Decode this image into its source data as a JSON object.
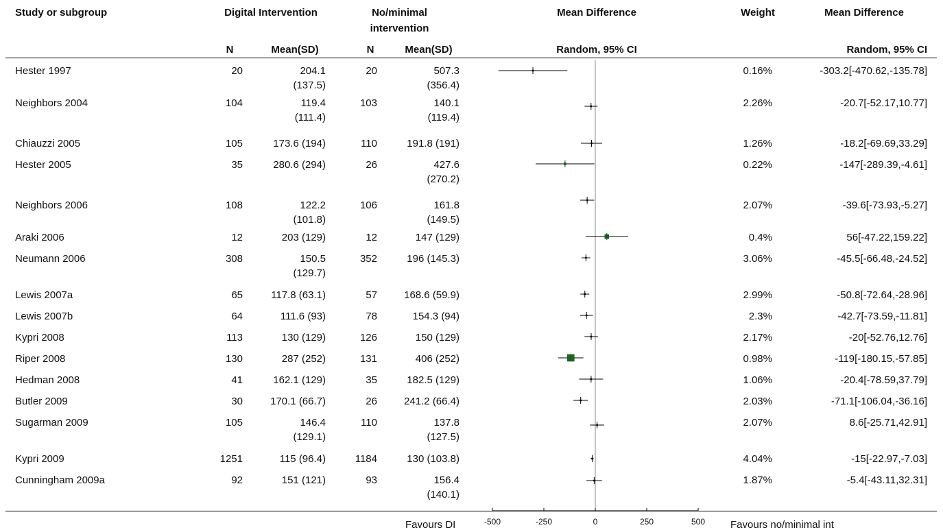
{
  "header": {
    "study": "Study or subgroup",
    "group1": "Digital Intervention",
    "group2_line1": "No/minimal",
    "group2_line2": "intervention",
    "md": "Mean Difference",
    "weight": "Weight",
    "md2": "Mean Difference",
    "n": "N",
    "mean_sd": "Mean(SD)",
    "random_ci": "Random, 95% CI"
  },
  "rows": [
    {
      "study": "Hester 1997",
      "n1": "20",
      "m1a": "204.1",
      "m1b": "(137.5)",
      "n2": "20",
      "m2a": "507.3",
      "m2b": "(356.4)",
      "weight": "0.16%",
      "ci": "-303.2[-470.62,-135.78]"
    },
    {
      "study": "Neighbors 2004",
      "n1": "104",
      "m1a": "119.4",
      "m1b": "(111.4)",
      "n2": "103",
      "m2a": "140.1",
      "m2b": "(119.4)",
      "weight": "2.26%",
      "ci": "-20.7[-52.17,10.77]"
    },
    {
      "study": "Chiauzzi 2005",
      "n1": "105",
      "m1a": "173.6 (194)",
      "m1b": "",
      "n2": "110",
      "m2a": "191.8 (191)",
      "m2b": "",
      "weight": "1.26%",
      "ci": "-18.2[-69.69,33.29]"
    },
    {
      "study": "Hester 2005",
      "n1": "35",
      "m1a": "280.6 (294)",
      "m1b": "",
      "n2": "26",
      "m2a": "427.6",
      "m2b": "(270.2)",
      "weight": "0.22%",
      "ci": "-147[-289.39,-4.61]"
    },
    {
      "study": "Neighbors 2006",
      "n1": "108",
      "m1a": "122.2",
      "m1b": "(101.8)",
      "n2": "106",
      "m2a": "161.8",
      "m2b": "(149.5)",
      "weight": "2.07%",
      "ci": "-39.6[-73.93,-5.27]"
    },
    {
      "study": "Araki 2006",
      "n1": "12",
      "m1a": "203 (129)",
      "m1b": "",
      "n2": "12",
      "m2a": "147 (129)",
      "m2b": "",
      "weight": "0.4%",
      "ci": "56[-47.22,159.22]"
    },
    {
      "study": "Neumann 2006",
      "n1": "308",
      "m1a": "150.5",
      "m1b": "(129.7)",
      "n2": "352",
      "m2a": "196 (145.3)",
      "m2b": "",
      "weight": "3.06%",
      "ci": "-45.5[-66.48,-24.52]"
    },
    {
      "study": "Lewis 2007a",
      "n1": "65",
      "m1a": "117.8 (63.1)",
      "m1b": "",
      "n2": "57",
      "m2a": "168.6 (59.9)",
      "m2b": "",
      "weight": "2.99%",
      "ci": "-50.8[-72.64,-28.96]"
    },
    {
      "study": "Lewis 2007b",
      "n1": "64",
      "m1a": "111.6 (93)",
      "m1b": "",
      "n2": "78",
      "m2a": "154.3 (94)",
      "m2b": "",
      "weight": "2.3%",
      "ci": "-42.7[-73.59,-11.81]"
    },
    {
      "study": "Kypri 2008",
      "n1": "113",
      "m1a": "130 (129)",
      "m1b": "",
      "n2": "126",
      "m2a": "150 (129)",
      "m2b": "",
      "weight": "2.17%",
      "ci": "-20[-52.76,12.76]"
    },
    {
      "study": "Riper 2008",
      "n1": "130",
      "m1a": "287 (252)",
      "m1b": "",
      "n2": "131",
      "m2a": "406 (252)",
      "m2b": "",
      "weight": "0.98%",
      "ci": "-119[-180.15,-57.85]"
    },
    {
      "study": "Hedman 2008",
      "n1": "41",
      "m1a": "162.1 (129)",
      "m1b": "",
      "n2": "35",
      "m2a": "182.5 (129)",
      "m2b": "",
      "weight": "1.06%",
      "ci": "-20.4[-78.59,37.79]"
    },
    {
      "study": "Butler 2009",
      "n1": "30",
      "m1a": "170.1 (66.7)",
      "m1b": "",
      "n2": "26",
      "m2a": "241.2 (66.4)",
      "m2b": "",
      "weight": "2.03%",
      "ci": "-71.1[-106.04,-36.16]"
    },
    {
      "study": "Sugarman 2009",
      "n1": "105",
      "m1a": "146.4",
      "m1b": "(129.1)",
      "n2": "110",
      "m2a": "137.8",
      "m2b": "(127.5)",
      "weight": "2.07%",
      "ci": "8.6[-25.71,42.91]"
    },
    {
      "study": "Kypri 2009",
      "n1": "1251",
      "m1a": "115 (96.4)",
      "m1b": "",
      "n2": "1184",
      "m2a": "130 (103.8)",
      "m2b": "",
      "weight": "4.04%",
      "ci": "-15[-22.97,-7.03]"
    },
    {
      "study": "Cunningham 2009a",
      "n1": "92",
      "m1a": "151 (121)",
      "m1b": "",
      "n2": "93",
      "m2a": "156.4",
      "m2b": "(140.1)",
      "weight": "1.87%",
      "ci": "-5.4[-43.11,32.31]"
    }
  ],
  "footer": {
    "favours_left": "Favours DI",
    "favours_right": "Favours no/minimal int"
  },
  "chart_data": {
    "type": "forest",
    "xlim": [
      -500,
      500
    ],
    "xticks": [
      "-500",
      "-250",
      "0",
      "250",
      "500"
    ],
    "xtick_values": [
      -500,
      -250,
      0,
      250,
      500
    ],
    "studies": [
      "Hester 1997",
      "Neighbors 2004",
      "Chiauzzi 2005",
      "Hester 2005",
      "Neighbors 2006",
      "Araki 2006",
      "Neumann 2006",
      "Lewis 2007a",
      "Lewis 2007b",
      "Kypri 2008",
      "Riper 2008",
      "Hedman 2008",
      "Butler 2009",
      "Sugarman 2009",
      "Kypri 2009",
      "Cunningham 2009a"
    ],
    "estimates": [
      -303.2,
      -20.7,
      -18.2,
      -147,
      -39.6,
      56,
      -45.5,
      -50.8,
      -42.7,
      -20,
      -119,
      -20.4,
      -71.1,
      8.6,
      -15,
      -5.4
    ],
    "ci_low": [
      -470.62,
      -52.17,
      -69.69,
      -289.39,
      -73.93,
      -47.22,
      -66.48,
      -72.64,
      -73.59,
      -52.76,
      -180.15,
      -78.59,
      -106.04,
      -25.71,
      -22.97,
      -43.11
    ],
    "ci_high": [
      -135.78,
      10.77,
      33.29,
      -4.61,
      -5.27,
      159.22,
      -24.52,
      -28.96,
      -11.81,
      12.76,
      -57.85,
      37.79,
      -36.16,
      42.91,
      -7.03,
      32.31
    ],
    "marker_color": "#1a6b1a",
    "square_color_key": [
      false,
      false,
      false,
      true,
      false,
      true,
      false,
      false,
      false,
      false,
      true,
      false,
      false,
      false,
      false,
      false
    ],
    "square_size": [
      2,
      2,
      2,
      3,
      2,
      6,
      2,
      2,
      2,
      2,
      10,
      2,
      2,
      2,
      2,
      2
    ]
  }
}
